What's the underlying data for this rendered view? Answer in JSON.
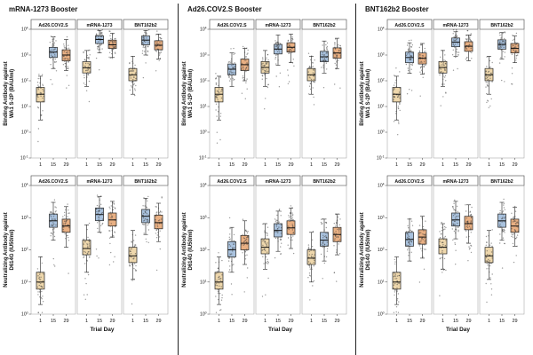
{
  "chart_data": {
    "type": "box",
    "xlabel": "Trial Day",
    "days": [
      "1",
      "15",
      "29"
    ],
    "day_colors": [
      "#eed7ac",
      "#a9c2de",
      "#e9b083"
    ],
    "point_color": "#3a3a3a",
    "scale": "log10",
    "boosters": [
      {
        "title": "mRNA-1273 Booster",
        "panels": [
          {
            "ylabel_line1": "Binding Antibody against",
            "ylabel_line2": "WA1 S-2P (BAU/ml)",
            "log_min": -1,
            "log_max": 4,
            "subpanels": [
              {
                "label": "Ad26.COV2.S",
                "boxes": [
                  [
                    3,
                    15,
                    30,
                    55,
                    150
                  ],
                  [
                    300,
                    800,
                    1300,
                    2000,
                    5000
                  ],
                  [
                    250,
                    600,
                    1000,
                    1600,
                    4000
                  ]
                ]
              },
              {
                "label": "mRNA-1273",
                "boxes": [
                  [
                    60,
                    200,
                    320,
                    550,
                    1500
                  ],
                  [
                    1200,
                    2800,
                    4000,
                    5600,
                    9000
                  ],
                  [
                    800,
                    1800,
                    2500,
                    3800,
                    7000
                  ]
                ]
              },
              {
                "label": "BNT162b2",
                "boxes": [
                  [
                    30,
                    100,
                    170,
                    300,
                    900
                  ],
                  [
                    1000,
                    2500,
                    3800,
                    5500,
                    9000
                  ],
                  [
                    700,
                    1600,
                    2400,
                    3600,
                    6500
                  ]
                ]
              }
            ]
          },
          {
            "ylabel_line1": "Neutralizing Antibody against",
            "ylabel_line2": "D614G (IU50/ml)",
            "log_min": 0,
            "log_max": 4,
            "subpanels": [
              {
                "label": "Ad26.COV2.S",
                "boxes": [
                  [
                    2,
                    6,
                    10,
                    20,
                    60
                  ],
                  [
                    200,
                    500,
                    800,
                    1300,
                    3000
                  ],
                  [
                    120,
                    350,
                    550,
                    900,
                    2200
                  ]
                ]
              },
              {
                "label": "mRNA-1273",
                "boxes": [
                  [
                    20,
                    70,
                    110,
                    200,
                    600
                  ],
                  [
                    350,
                    800,
                    1250,
                    2000,
                    4500
                  ],
                  [
                    250,
                    550,
                    850,
                    1400,
                    3200
                  ]
                ]
              },
              {
                "label": "BNT162b2",
                "boxes": [
                  [
                    12,
                    40,
                    65,
                    120,
                    400
                  ],
                  [
                    300,
                    700,
                    1100,
                    1800,
                    4000
                  ],
                  [
                    180,
                    450,
                    700,
                    1200,
                    2800
                  ]
                ]
              }
            ]
          }
        ]
      },
      {
        "title": "Ad26.COV2.S Booster",
        "panels": [
          {
            "ylabel_line1": "Binding Antibody against",
            "ylabel_line2": "WA1 S-2P (BAU/ml)",
            "log_min": -1,
            "log_max": 4,
            "subpanels": [
              {
                "label": "Ad26.COV2.S",
                "boxes": [
                  [
                    3,
                    15,
                    30,
                    55,
                    150
                  ],
                  [
                    60,
                    170,
                    280,
                    450,
                    1200
                  ],
                  [
                    100,
                    250,
                    420,
                    700,
                    1800
                  ]
                ]
              },
              {
                "label": "mRNA-1273",
                "boxes": [
                  [
                    60,
                    200,
                    330,
                    560,
                    1500
                  ],
                  [
                    400,
                    1100,
                    1700,
                    2600,
                    6000
                  ],
                  [
                    500,
                    1300,
                    2000,
                    3000,
                    6500
                  ]
                ]
              },
              {
                "label": "BNT162b2",
                "boxes": [
                  [
                    30,
                    100,
                    170,
                    300,
                    900
                  ],
                  [
                    200,
                    550,
                    850,
                    1400,
                    3500
                  ],
                  [
                    300,
                    750,
                    1200,
                    1900,
                    4500
                  ]
                ]
              }
            ]
          },
          {
            "ylabel_line1": "Neutralizing Antibody against",
            "ylabel_line2": "D614G (IU50/ml)",
            "log_min": 0,
            "log_max": 4,
            "subpanels": [
              {
                "label": "Ad26.COV2.S",
                "boxes": [
                  [
                    2,
                    6,
                    10,
                    20,
                    60
                  ],
                  [
                    20,
                    60,
                    100,
                    180,
                    500
                  ],
                  [
                    35,
                    100,
                    160,
                    280,
                    800
                  ]
                ]
              },
              {
                "label": "mRNA-1273",
                "boxes": [
                  [
                    25,
                    75,
                    120,
                    220,
                    650
                  ],
                  [
                    90,
                    250,
                    400,
                    650,
                    1600
                  ],
                  [
                    110,
                    300,
                    480,
                    800,
                    2000
                  ]
                ]
              },
              {
                "label": "BNT162b2",
                "boxes": [
                  [
                    10,
                    35,
                    55,
                    100,
                    350
                  ],
                  [
                    45,
                    130,
                    200,
                    350,
                    900
                  ],
                  [
                    70,
                    180,
                    300,
                    500,
                    1300
                  ]
                ]
              }
            ]
          }
        ]
      },
      {
        "title": "BNT162b2 Booster",
        "panels": [
          {
            "ylabel_line1": "Binding Antibody against",
            "ylabel_line2": "WA1 S-2P (BAU/ml)",
            "log_min": -1,
            "log_max": 4,
            "subpanels": [
              {
                "label": "Ad26.COV2.S",
                "boxes": [
                  [
                    3,
                    15,
                    30,
                    55,
                    150
                  ],
                  [
                    200,
                    500,
                    800,
                    1300,
                    3000
                  ],
                  [
                    180,
                    450,
                    750,
                    1200,
                    2800
                  ]
                ]
              },
              {
                "label": "mRNA-1273",
                "boxes": [
                  [
                    60,
                    200,
                    330,
                    560,
                    1500
                  ],
                  [
                    900,
                    2100,
                    3200,
                    4600,
                    8000
                  ],
                  [
                    600,
                    1400,
                    2200,
                    3300,
                    6000
                  ]
                ]
              },
              {
                "label": "BNT162b2",
                "boxes": [
                  [
                    30,
                    100,
                    170,
                    300,
                    900
                  ],
                  [
                    700,
                    1700,
                    2600,
                    3900,
                    7500
                  ],
                  [
                    500,
                    1200,
                    1800,
                    2800,
                    5500
                  ]
                ]
              }
            ]
          },
          {
            "ylabel_line1": "Neutralizing Antibody against",
            "ylabel_line2": "D614G (IU50/ml)",
            "log_min": 0,
            "log_max": 4,
            "subpanels": [
              {
                "label": "Ad26.COV2.S",
                "boxes": [
                  [
                    2,
                    6,
                    10,
                    20,
                    60
                  ],
                  [
                    45,
                    130,
                    210,
                    350,
                    900
                  ],
                  [
                    55,
                    150,
                    250,
                    420,
                    1100
                  ]
                ]
              },
              {
                "label": "mRNA-1273",
                "boxes": [
                  [
                    25,
                    75,
                    120,
                    220,
                    650
                  ],
                  [
                    220,
                    550,
                    850,
                    1400,
                    3200
                  ],
                  [
                    160,
                    420,
                    650,
                    1100,
                    2500
                  ]
                ]
              },
              {
                "label": "BNT162b2",
                "boxes": [
                  [
                    12,
                    40,
                    65,
                    120,
                    400
                  ],
                  [
                    200,
                    500,
                    800,
                    1300,
                    3000
                  ],
                  [
                    130,
                    350,
                    550,
                    900,
                    2100
                  ]
                ]
              }
            ]
          }
        ]
      }
    ]
  }
}
